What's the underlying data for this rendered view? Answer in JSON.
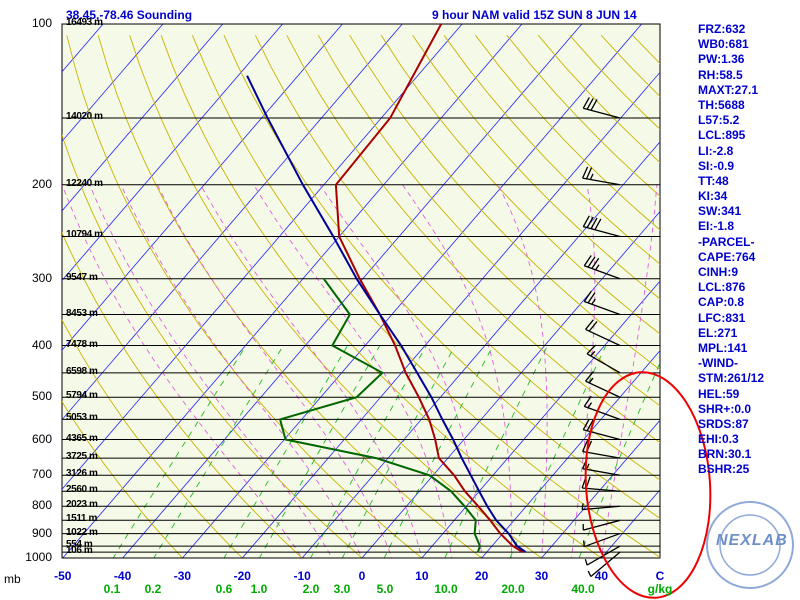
{
  "header": {
    "location": "38.45,-78.46 Sounding",
    "valid": "9 hour NAM valid 15Z SUN  8 JUN 14"
  },
  "indices": [
    "FRZ:632",
    "WB0:681",
    "PW:1.36",
    "RH:58.5",
    "MAXT:27.1",
    "TH:5688",
    "L57:5.2",
    "LCL:895",
    "LI:-2.8",
    "SI:-0.9",
    "TT:48",
    "KI:34",
    "SW:341",
    "EI:-1.8",
    "-PARCEL-",
    "CAPE:764",
    "CINH:9",
    "LCL:876",
    "CAP:0.8",
    "LFC:831",
    "EL:271",
    "MPL:141",
    "-WIND-",
    "STM:261/12",
    "HEL:59",
    "SHR+:0.0",
    "SRDS:87",
    "EHI:0.3",
    "BRN:30.1",
    "BSHR:25"
  ],
  "axis": {
    "pressure_unit": "mb",
    "temp_unit": "C",
    "mixing_unit": "g/kg"
  },
  "logo": {
    "text": "NEXLAB"
  },
  "colors": {
    "temperature": "#aa0000",
    "dewpoint": "#006600",
    "parcel": "#000099",
    "isotherm": "#2222ff",
    "dry_adiabat": "#c8b400",
    "moist_adiabat": "#e060e0",
    "mixing_ratio": "#22bb22",
    "annotation": "#ee0000",
    "background": "#f5f9e7"
  },
  "chart_data": {
    "type": "skew-t",
    "pressure_levels": [
      100,
      200,
      300,
      400,
      500,
      600,
      700,
      800,
      900,
      1000
    ],
    "pressure_labels": [
      "100",
      "200",
      "300",
      "400",
      "500",
      "600",
      "700",
      "800",
      "900",
      "1000"
    ],
    "heights": [
      {
        "p": 100,
        "label": "16493 m"
      },
      {
        "p": 150,
        "label": "14020 m"
      },
      {
        "p": 200,
        "label": "12240 m"
      },
      {
        "p": 250,
        "label": "10794 m"
      },
      {
        "p": 300,
        "label": "9547 m"
      },
      {
        "p": 350,
        "label": "8453 m"
      },
      {
        "p": 400,
        "label": "7478 m"
      },
      {
        "p": 450,
        "label": "6598 m"
      },
      {
        "p": 500,
        "label": "5794 m"
      },
      {
        "p": 550,
        "label": "5053 m"
      },
      {
        "p": 600,
        "label": "4365 m"
      },
      {
        "p": 650,
        "label": "3725 m"
      },
      {
        "p": 700,
        "label": "3126 m"
      },
      {
        "p": 750,
        "label": "2560 m"
      },
      {
        "p": 800,
        "label": "2023 m"
      },
      {
        "p": 850,
        "label": "1511 m"
      },
      {
        "p": 900,
        "label": "1022 m"
      },
      {
        "p": 950,
        "label": "554 m"
      },
      {
        "p": 975,
        "label": "106 m"
      }
    ],
    "temp_ticks": [
      {
        "v": -50,
        "label": "-50"
      },
      {
        "v": -40,
        "label": "-40"
      },
      {
        "v": -30,
        "label": "-30"
      },
      {
        "v": -20,
        "label": "-20"
      },
      {
        "v": -10,
        "label": "-10"
      },
      {
        "v": 0,
        "label": "0"
      },
      {
        "v": 10,
        "label": "10"
      },
      {
        "v": 20,
        "label": "20"
      },
      {
        "v": 30,
        "label": "30"
      },
      {
        "v": 40,
        "label": "40"
      }
    ],
    "mixing_ticks": [
      {
        "w": 0.1,
        "label": "0.1"
      },
      {
        "w": 0.2,
        "label": "0.2"
      },
      {
        "w": 0.6,
        "label": "0.6"
      },
      {
        "w": 1.0,
        "label": "1.0"
      },
      {
        "w": 2.0,
        "label": "2.0"
      },
      {
        "w": 3.0,
        "label": "3.0"
      },
      {
        "w": 5.0,
        "label": "5.0"
      },
      {
        "w": 10.0,
        "label": "10.0"
      },
      {
        "w": 20.0,
        "label": "20.0"
      },
      {
        "w": 40.0,
        "label": "40.0"
      }
    ],
    "temperature_profile": [
      {
        "p": 975,
        "t": 26.0
      },
      {
        "p": 950,
        "t": 23.5
      },
      {
        "p": 900,
        "t": 19.6
      },
      {
        "p": 850,
        "t": 16.0
      },
      {
        "p": 800,
        "t": 12.0
      },
      {
        "p": 750,
        "t": 7.6
      },
      {
        "p": 700,
        "t": 3.5
      },
      {
        "p": 650,
        "t": -1.5
      },
      {
        "p": 600,
        "t": -4.8
      },
      {
        "p": 550,
        "t": -8.7
      },
      {
        "p": 500,
        "t": -13.6
      },
      {
        "p": 450,
        "t": -19.3
      },
      {
        "p": 400,
        "t": -25.0
      },
      {
        "p": 350,
        "t": -32.0
      },
      {
        "p": 300,
        "t": -40.5
      },
      {
        "p": 250,
        "t": -50.0
      },
      {
        "p": 200,
        "t": -58.0
      },
      {
        "p": 150,
        "t": -58.5
      },
      {
        "p": 100,
        "t": -63.5
      }
    ],
    "dewpoint_profile": [
      {
        "p": 975,
        "t": 18.5
      },
      {
        "p": 950,
        "t": 18.0
      },
      {
        "p": 900,
        "t": 15.3
      },
      {
        "p": 850,
        "t": 13.6
      },
      {
        "p": 800,
        "t": 9.7
      },
      {
        "p": 750,
        "t": 5.3
      },
      {
        "p": 700,
        "t": -0.6
      },
      {
        "p": 650,
        "t": -12.0
      },
      {
        "p": 600,
        "t": -29.8
      },
      {
        "p": 550,
        "t": -33.6
      },
      {
        "p": 500,
        "t": -24.0
      },
      {
        "p": 450,
        "t": -23.2
      },
      {
        "p": 400,
        "t": -35.5
      },
      {
        "p": 350,
        "t": -37.0
      },
      {
        "p": 300,
        "t": -46.5
      }
    ],
    "parcel_profile": [
      {
        "p": 975,
        "t": 26.5
      },
      {
        "p": 950,
        "t": 24.2
      },
      {
        "p": 900,
        "t": 21.0
      },
      {
        "p": 850,
        "t": 17.0
      },
      {
        "p": 800,
        "t": 13.5
      },
      {
        "p": 750,
        "t": 10.0
      },
      {
        "p": 700,
        "t": 6.3
      },
      {
        "p": 650,
        "t": 2.3
      },
      {
        "p": 600,
        "t": -1.8
      },
      {
        "p": 550,
        "t": -6.5
      },
      {
        "p": 500,
        "t": -11.5
      },
      {
        "p": 450,
        "t": -17.4
      },
      {
        "p": 400,
        "t": -24.0
      },
      {
        "p": 350,
        "t": -32.0
      },
      {
        "p": 300,
        "t": -41.0
      },
      {
        "p": 250,
        "t": -51.0
      },
      {
        "p": 200,
        "t": -63.5
      },
      {
        "p": 150,
        "t": -79.0
      },
      {
        "p": 125,
        "t": -88.5
      }
    ],
    "wind_barbs": [
      {
        "p": 150,
        "dir": 285,
        "spd": 30
      },
      {
        "p": 200,
        "dir": 280,
        "spd": 25
      },
      {
        "p": 250,
        "dir": 285,
        "spd": 40
      },
      {
        "p": 300,
        "dir": 290,
        "spd": 35
      },
      {
        "p": 350,
        "dir": 290,
        "spd": 25
      },
      {
        "p": 400,
        "dir": 295,
        "spd": 20
      },
      {
        "p": 450,
        "dir": 300,
        "spd": 15
      },
      {
        "p": 500,
        "dir": 295,
        "spd": 15
      },
      {
        "p": 550,
        "dir": 290,
        "spd": 15
      },
      {
        "p": 600,
        "dir": 285,
        "spd": 20
      },
      {
        "p": 650,
        "dir": 280,
        "spd": 20
      },
      {
        "p": 700,
        "dir": 280,
        "spd": 15
      },
      {
        "p": 750,
        "dir": 275,
        "spd": 20
      },
      {
        "p": 800,
        "dir": 265,
        "spd": 5
      },
      {
        "p": 850,
        "dir": 255,
        "spd": 5
      },
      {
        "p": 900,
        "dir": 250,
        "spd": 5
      },
      {
        "p": 950,
        "dir": 240,
        "spd": 5
      },
      {
        "p": 975,
        "dir": 230,
        "spd": 5
      }
    ]
  }
}
